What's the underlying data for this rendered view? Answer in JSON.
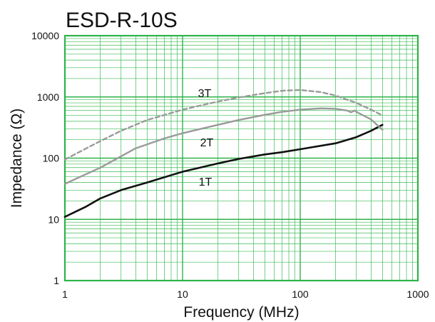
{
  "chart_data": {
    "type": "line",
    "title": "ESD-R-10S",
    "xlabel": "Frequency (MHz)",
    "ylabel": "Impedance (Ω)",
    "x_scale": "log",
    "y_scale": "log",
    "xlim": [
      1,
      1000
    ],
    "ylim": [
      1,
      10000
    ],
    "grid": true,
    "x_ticks": [
      "1",
      "10",
      "100",
      "1000"
    ],
    "y_ticks": [
      "1",
      "10",
      "100",
      "1000",
      "10000"
    ],
    "series": [
      {
        "name": "1T",
        "color": "#111111",
        "style": "solid",
        "x": [
          1,
          1.5,
          2,
          3,
          5,
          10,
          20,
          30,
          50,
          70,
          100,
          200,
          300,
          400,
          500
        ],
        "y": [
          11,
          16,
          22,
          30,
          40,
          60,
          82,
          97,
          115,
          125,
          140,
          175,
          220,
          280,
          350
        ]
      },
      {
        "name": "2T",
        "color": "#9a9a9a",
        "style": "solid",
        "x": [
          1,
          2,
          4,
          7,
          10,
          20,
          30,
          50,
          70,
          100,
          150,
          200,
          250,
          270,
          290,
          300,
          400,
          500
        ],
        "y": [
          38,
          70,
          145,
          210,
          255,
          350,
          420,
          510,
          570,
          620,
          650,
          640,
          600,
          560,
          600,
          570,
          430,
          290
        ]
      },
      {
        "name": "3T",
        "color": "#9a9a9a",
        "style": "dashed",
        "x": [
          1,
          2,
          3,
          5,
          10,
          20,
          30,
          50,
          70,
          100,
          150,
          200,
          300,
          400,
          500
        ],
        "y": [
          95,
          190,
          280,
          420,
          620,
          840,
          980,
          1150,
          1260,
          1300,
          1200,
          1050,
          800,
          620,
          500
        ]
      }
    ]
  }
}
